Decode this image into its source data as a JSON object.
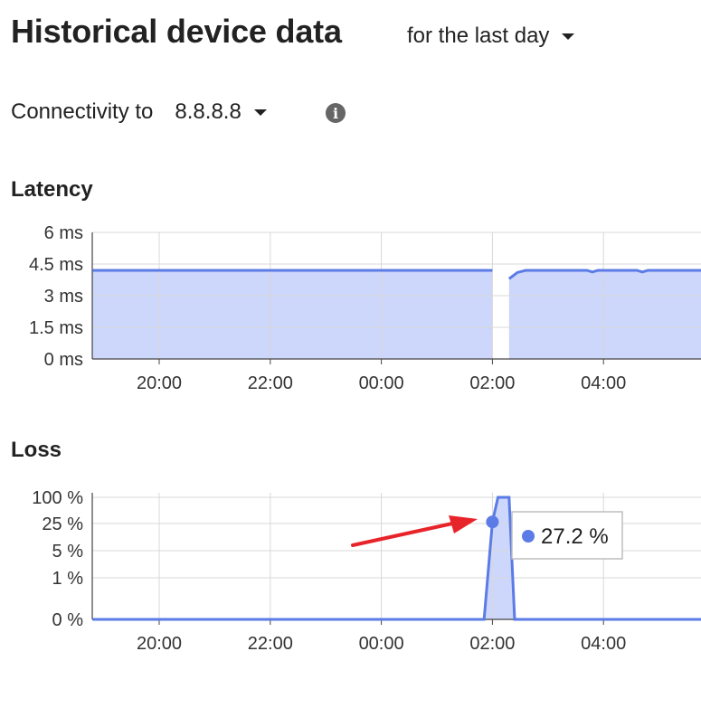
{
  "header": {
    "title": "Historical device data",
    "range_label": "for the last day"
  },
  "connectivity": {
    "label": "Connectivity to",
    "target": "8.8.8.8"
  },
  "icons": {
    "info": "info-icon",
    "caret": "caret-down-icon"
  },
  "colors": {
    "line": "#5b7be6",
    "fill": "#cdd6fb",
    "grid": "#d8d8d8",
    "arrow": "#e8242b"
  },
  "chart_data": [
    {
      "type": "area",
      "title": "Latency",
      "y_tick_labels": [
        "6 ms",
        "4.5 ms",
        "3 ms",
        "1.5 ms",
        "0 ms"
      ],
      "x_tick_labels": [
        "20:00",
        "22:00",
        "00:00",
        "02:00",
        "04:00",
        "0"
      ],
      "ylim": [
        0,
        6
      ],
      "grid": true,
      "series": [
        {
          "segments": [
            [
              [
                18.8,
                4.2
              ],
              [
                26.0,
                4.2
              ]
            ],
            [
              [
                26.3,
                3.8
              ],
              [
                26.45,
                4.1
              ],
              [
                26.6,
                4.2
              ],
              [
                27.7,
                4.2
              ],
              [
                27.8,
                4.12
              ],
              [
                27.9,
                4.2
              ],
              [
                28.1,
                4.2
              ],
              [
                28.6,
                4.2
              ],
              [
                28.7,
                4.12
              ],
              [
                28.8,
                4.2
              ],
              [
                30.0,
                4.2
              ]
            ]
          ]
        }
      ]
    },
    {
      "type": "area",
      "title": "Loss",
      "y_tick_labels": [
        "100 %",
        "25 %",
        "5 %",
        "1 %",
        "0 %"
      ],
      "x_tick_labels": [
        "20:00",
        "22:00",
        "00:00",
        "02:00",
        "04:00",
        "0"
      ],
      "grid": true,
      "series": [
        {
          "points": [
            [
              18.8,
              0
            ],
            [
              25.85,
              0
            ],
            [
              26.0,
              27.2
            ],
            [
              26.1,
              100
            ],
            [
              26.3,
              100
            ],
            [
              26.4,
              0
            ],
            [
              30.0,
              0
            ]
          ]
        }
      ],
      "tooltip": {
        "x": 26.0,
        "value": 27.2,
        "label": "27.2 %"
      }
    }
  ]
}
